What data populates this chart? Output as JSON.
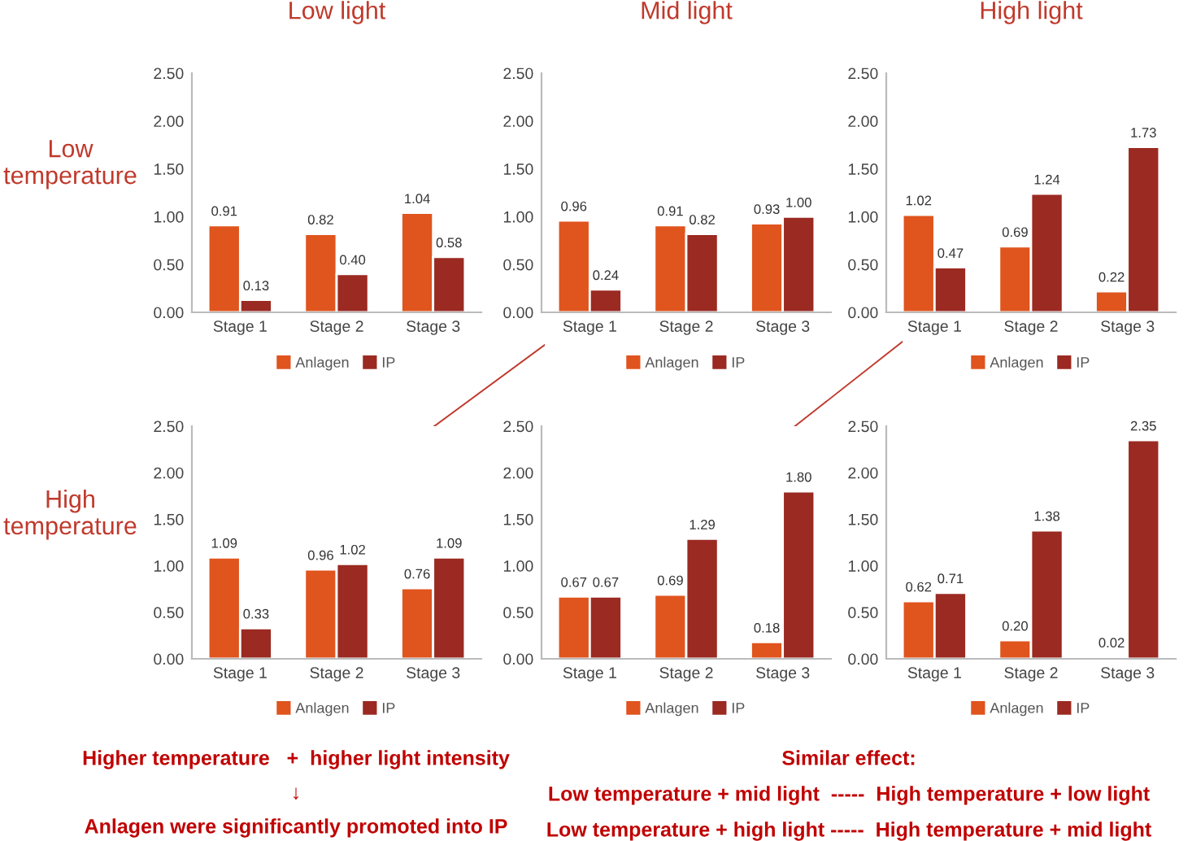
{
  "chart_data": [
    {
      "type": "bar",
      "title": "Low light",
      "ylabel": "Low\ntemperature",
      "categories": [
        "Stage 1",
        "Stage 2",
        "Stage 3"
      ],
      "ylim": [
        0,
        2.5
      ],
      "yticks": [
        {
          "value": 0,
          "label": "0.00"
        },
        {
          "value": 0.5,
          "label": "0.50"
        },
        {
          "value": 1,
          "label": "1.00"
        },
        {
          "value": 1.5,
          "label": "1.50"
        },
        {
          "value": 2,
          "label": "2.00"
        },
        {
          "value": 2.5,
          "label": "2.50"
        }
      ],
      "grid": false,
      "legend": "bottom",
      "series": [
        {
          "name": "Anlagen",
          "color": "#e0541e",
          "values": [
            0.91,
            0.82,
            1.04
          ],
          "value_labels": [
            "0.91",
            "0.82",
            "1.04"
          ]
        },
        {
          "name": "IP",
          "color": "#9b2a22",
          "values": [
            0.13,
            0.4,
            0.58
          ],
          "value_labels": [
            "0.13",
            "0.40",
            "0.58"
          ]
        }
      ]
    },
    {
      "type": "bar",
      "title": "Mid light",
      "categories": [
        "Stage 1",
        "Stage 2",
        "Stage 3"
      ],
      "ylim": [
        0,
        2.5
      ],
      "yticks": [
        {
          "value": 0,
          "label": "0.00"
        },
        {
          "value": 0.5,
          "label": "0.50"
        },
        {
          "value": 1,
          "label": "1.00"
        },
        {
          "value": 1.5,
          "label": "1.50"
        },
        {
          "value": 2,
          "label": "2.00"
        },
        {
          "value": 2.5,
          "label": "2.50"
        }
      ],
      "grid": false,
      "legend": "bottom",
      "series": [
        {
          "name": "Anlagen",
          "color": "#e0541e",
          "values": [
            0.96,
            0.91,
            0.93
          ],
          "value_labels": [
            "0.96",
            "0.91",
            "0.93"
          ]
        },
        {
          "name": "IP",
          "color": "#9b2a22",
          "values": [
            0.24,
            0.82,
            1.0
          ],
          "value_labels": [
            "0.24",
            "0.82",
            "1.00"
          ]
        }
      ]
    },
    {
      "type": "bar",
      "title": "High light",
      "categories": [
        "Stage 1",
        "Stage 2",
        "Stage 3"
      ],
      "ylim": [
        0,
        2.5
      ],
      "yticks": [
        {
          "value": 0,
          "label": "0.00"
        },
        {
          "value": 0.5,
          "label": "0.50"
        },
        {
          "value": 1,
          "label": "1.00"
        },
        {
          "value": 1.5,
          "label": "1.50"
        },
        {
          "value": 2,
          "label": "2.00"
        },
        {
          "value": 2.5,
          "label": "2.50"
        }
      ],
      "grid": false,
      "legend": "bottom",
      "series": [
        {
          "name": "Anlagen",
          "color": "#e0541e",
          "values": [
            1.02,
            0.69,
            0.22
          ],
          "value_labels": [
            "1.02",
            "0.69",
            "0.22"
          ]
        },
        {
          "name": "IP",
          "color": "#9b2a22",
          "values": [
            0.47,
            1.24,
            1.73
          ],
          "value_labels": [
            "0.47",
            "1.24",
            "1.73"
          ]
        }
      ]
    },
    {
      "type": "bar",
      "ylabel": "High\ntemperature",
      "categories": [
        "Stage 1",
        "Stage 2",
        "Stage 3"
      ],
      "ylim": [
        0,
        2.5
      ],
      "yticks": [
        {
          "value": 0,
          "label": "0.00"
        },
        {
          "value": 0.5,
          "label": "0.50"
        },
        {
          "value": 1,
          "label": "1.00"
        },
        {
          "value": 1.5,
          "label": "1.50"
        },
        {
          "value": 2,
          "label": "2.00"
        },
        {
          "value": 2.5,
          "label": "2.50"
        }
      ],
      "grid": false,
      "legend": "bottom",
      "annotations": [
        "Higher temperature   +  higher light intensity",
        "↓",
        "Anlagen were significantly promoted into IP"
      ],
      "series": [
        {
          "name": "Anlagen",
          "color": "#e0541e",
          "values": [
            1.09,
            0.96,
            0.76
          ],
          "value_labels": [
            "1.09",
            "0.96",
            "0.76"
          ]
        },
        {
          "name": "IP",
          "color": "#9b2a22",
          "values": [
            0.33,
            1.02,
            1.09
          ],
          "value_labels": [
            "0.33",
            "1.02",
            "1.09"
          ]
        }
      ]
    },
    {
      "type": "bar",
      "categories": [
        "Stage 1",
        "Stage 2",
        "Stage 3"
      ],
      "ylim": [
        0,
        2.5
      ],
      "yticks": [
        {
          "value": 0,
          "label": "0.00"
        },
        {
          "value": 0.5,
          "label": "0.50"
        },
        {
          "value": 1,
          "label": "1.00"
        },
        {
          "value": 1.5,
          "label": "1.50"
        },
        {
          "value": 2,
          "label": "2.00"
        },
        {
          "value": 2.5,
          "label": "2.50"
        }
      ],
      "grid": false,
      "legend": "bottom",
      "series": [
        {
          "name": "Anlagen",
          "color": "#e0541e",
          "values": [
            0.67,
            0.69,
            0.18
          ],
          "value_labels": [
            "0.67",
            "0.69",
            "0.18"
          ]
        },
        {
          "name": "IP",
          "color": "#9b2a22",
          "values": [
            0.67,
            1.29,
            1.8
          ],
          "value_labels": [
            "0.67",
            "1.29",
            "1.80"
          ]
        }
      ]
    },
    {
      "type": "bar",
      "categories": [
        "Stage 1",
        "Stage 2",
        "Stage 3"
      ],
      "ylim": [
        0,
        2.5
      ],
      "yticks": [
        {
          "value": 0,
          "label": "0.00"
        },
        {
          "value": 0.5,
          "label": "0.50"
        },
        {
          "value": 1,
          "label": "1.00"
        },
        {
          "value": 1.5,
          "label": "1.50"
        },
        {
          "value": 2,
          "label": "2.00"
        },
        {
          "value": 2.5,
          "label": "2.50"
        }
      ],
      "grid": false,
      "legend": "bottom",
      "annotations": [
        "Similar effect:",
        "Low temperature + mid light  -----  High temperature + low light",
        "Low temperature + high light -----  High temperature + mid light"
      ],
      "series": [
        {
          "name": "Anlagen",
          "color": "#e0541e",
          "values": [
            0.62,
            0.2,
            0.02
          ],
          "value_labels": [
            "0.62",
            "0.20",
            "0.02"
          ]
        },
        {
          "name": "IP",
          "color": "#9b2a22",
          "values": [
            0.71,
            1.38,
            2.35
          ],
          "value_labels": [
            "0.71",
            "1.38",
            "2.35"
          ]
        }
      ]
    }
  ]
}
